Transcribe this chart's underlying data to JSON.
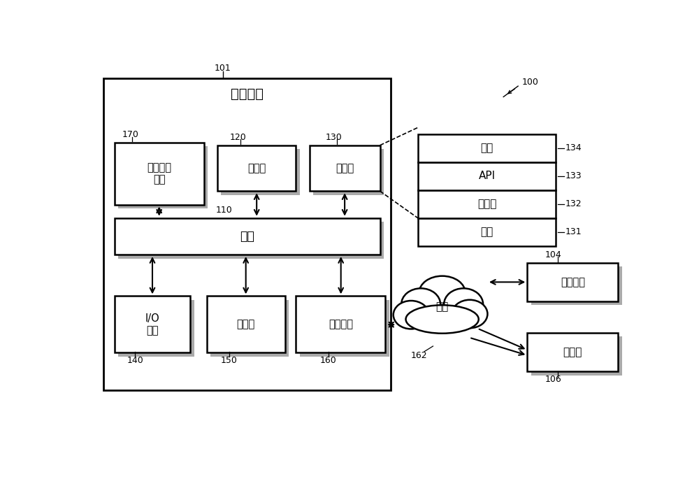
{
  "bg_color": "#ffffff",
  "main_box_label": "电子设备",
  "labels": {
    "data_share": "数据共享\n模块",
    "processor": "处理器",
    "storage": "存储器",
    "bus": "总线",
    "io": "I/O\n接口",
    "display": "显示器",
    "comm": "通信接口",
    "network": "网络",
    "elec_device": "电子设备",
    "server": "服务器",
    "app": "应用",
    "api": "API",
    "middleware": "中间件",
    "kernel": "内核"
  },
  "ref_labels": [
    "101",
    "170",
    "120",
    "130",
    "110",
    "140",
    "150",
    "160",
    "131",
    "132",
    "133",
    "134",
    "162",
    "104",
    "106",
    "100"
  ]
}
